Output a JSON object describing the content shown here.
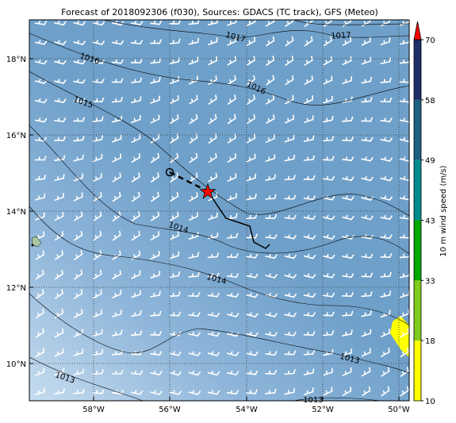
{
  "title": "Forecast of 2018092306 (f030), Sources: GDACS (TC track), GFS (Meteo)",
  "map": {
    "lon_ticks": [
      "58°W",
      "56°W",
      "54°W",
      "52°W",
      "50°W"
    ],
    "lat_ticks": [
      "18°N",
      "16°N",
      "14°N",
      "12°N",
      "10°N"
    ],
    "isobar_labels": [
      1017,
      1017,
      1016,
      1016,
      1015,
      1014,
      1014,
      1013,
      1013,
      1013
    ]
  },
  "colorbar": {
    "label": "10 m wind speed (m/s)",
    "ticks": [
      10,
      18,
      33,
      43,
      49,
      58,
      70
    ],
    "colors": [
      "#ffff00",
      "#7fcc1a",
      "#00a800",
      "#008c8c",
      "#1f5f80",
      "#1f2f6a"
    ],
    "extend_color": "#ff0000"
  }
}
